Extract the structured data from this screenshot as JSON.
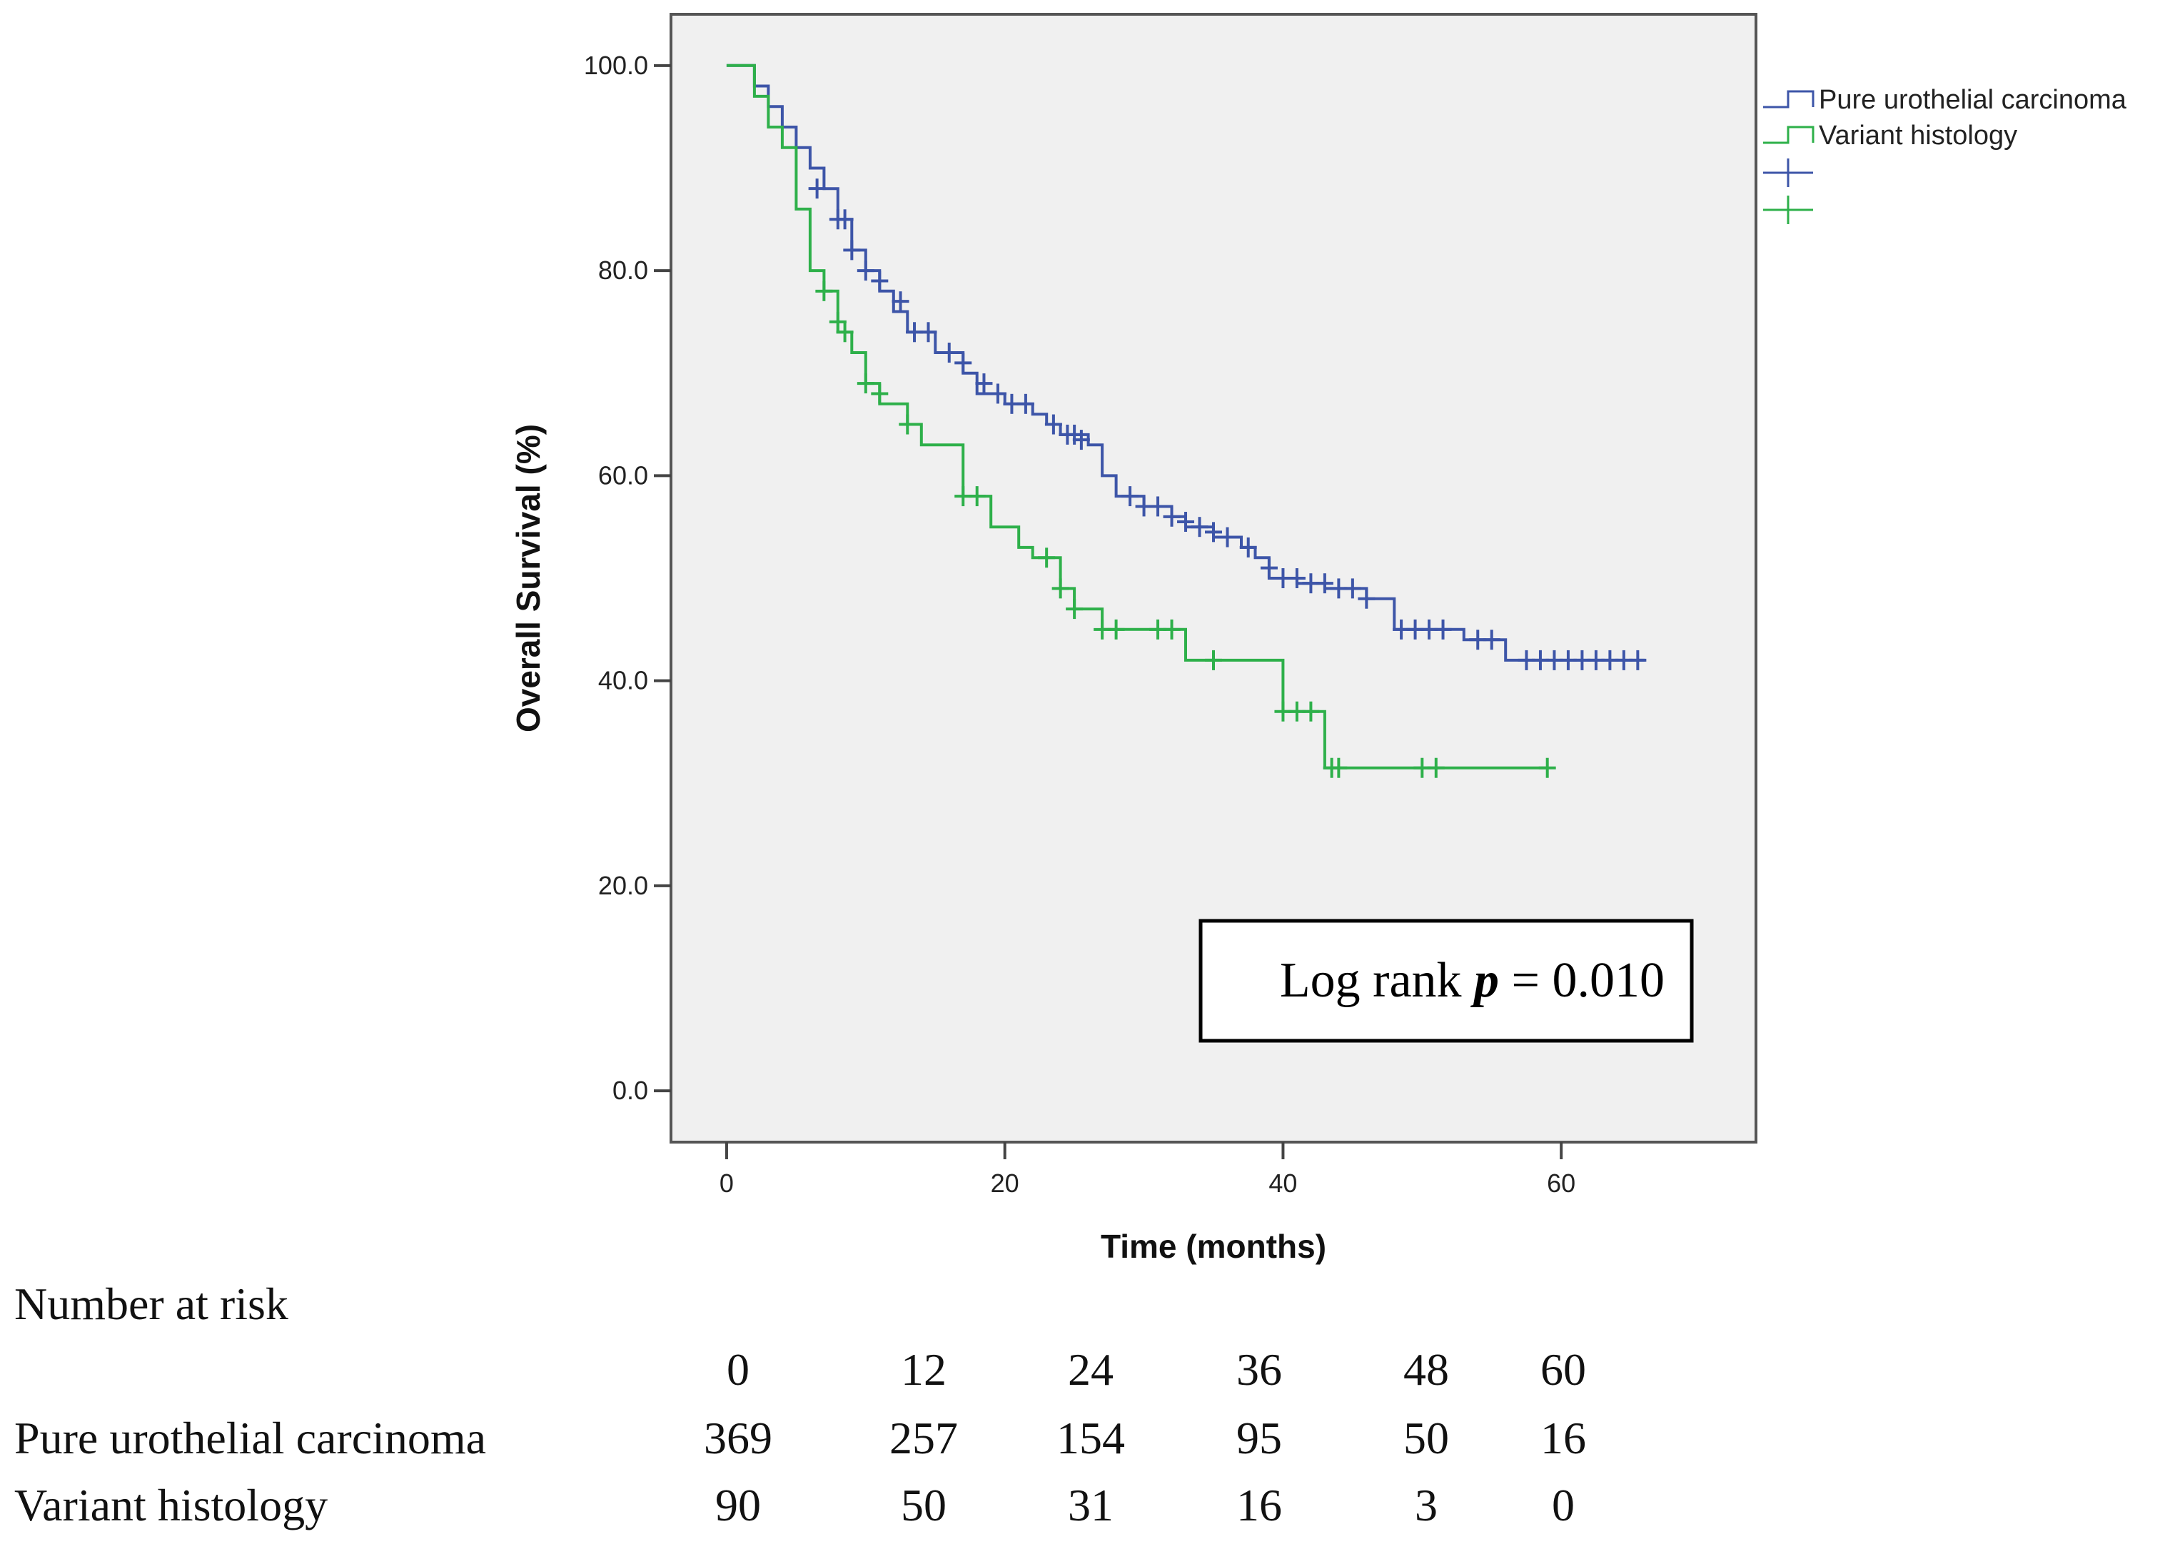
{
  "chart_data": {
    "type": "line",
    "subtype": "kaplan-meier",
    "xlabel": "Time (months)",
    "ylabel": "Overall Survival (%)",
    "xlim": [
      -4,
      74
    ],
    "ylim": [
      -5,
      105
    ],
    "xticks": [
      0,
      20,
      40,
      60
    ],
    "yticks": [
      0,
      20,
      40,
      60,
      80,
      100
    ],
    "yticklabels": [
      "0.0",
      "20.0",
      "40.0",
      "60.0",
      "80.0",
      "100.0"
    ],
    "grid": false,
    "legend": {
      "placement": "outside-top-right",
      "entries": [
        "Pure urothelial carcinoma",
        "Variant histology",
        "",
        ""
      ]
    },
    "annotation": {
      "prefix": "Log rank ",
      "italic": "p",
      "suffix": " = 0.010"
    },
    "colors": {
      "pure": "#3d55a8",
      "variant": "#2eb04a",
      "plot_bg": "#f0f0f0"
    },
    "series": [
      {
        "name": "Pure urothelial carcinoma",
        "color": "#3d55a8",
        "steps": [
          [
            0,
            100
          ],
          [
            2,
            100
          ],
          [
            2,
            98
          ],
          [
            3,
            98
          ],
          [
            3,
            96
          ],
          [
            4,
            96
          ],
          [
            4,
            94
          ],
          [
            5,
            94
          ],
          [
            5,
            92
          ],
          [
            6,
            92
          ],
          [
            6,
            90
          ],
          [
            7,
            90
          ],
          [
            7,
            88
          ],
          [
            8,
            88
          ],
          [
            8,
            85
          ],
          [
            9,
            85
          ],
          [
            9,
            82
          ],
          [
            10,
            82
          ],
          [
            10,
            80
          ],
          [
            11,
            80
          ],
          [
            11,
            78
          ],
          [
            12,
            78
          ],
          [
            12,
            76
          ],
          [
            13,
            76
          ],
          [
            13,
            74
          ],
          [
            15,
            74
          ],
          [
            15,
            72
          ],
          [
            17,
            72
          ],
          [
            17,
            70
          ],
          [
            18,
            70
          ],
          [
            18,
            68
          ],
          [
            20,
            68
          ],
          [
            20,
            67
          ],
          [
            22,
            67
          ],
          [
            22,
            66
          ],
          [
            23,
            66
          ],
          [
            23,
            65
          ],
          [
            24,
            65
          ],
          [
            24,
            64
          ],
          [
            26,
            64
          ],
          [
            26,
            63
          ],
          [
            27,
            63
          ],
          [
            27,
            60
          ],
          [
            28,
            60
          ],
          [
            28,
            58
          ],
          [
            30,
            58
          ],
          [
            30,
            57
          ],
          [
            32,
            57
          ],
          [
            32,
            56
          ],
          [
            33,
            56
          ],
          [
            33,
            55
          ],
          [
            35,
            55
          ],
          [
            35,
            54
          ],
          [
            37,
            54
          ],
          [
            37,
            53
          ],
          [
            38,
            53
          ],
          [
            38,
            52
          ],
          [
            39,
            52
          ],
          [
            39,
            50
          ],
          [
            41,
            50
          ],
          [
            41,
            49.5
          ],
          [
            43,
            49.5
          ],
          [
            43,
            49
          ],
          [
            46,
            49
          ],
          [
            46,
            48
          ],
          [
            48,
            48
          ],
          [
            48,
            45
          ],
          [
            53,
            45
          ],
          [
            53,
            44
          ],
          [
            56,
            44
          ],
          [
            56,
            42
          ],
          [
            66,
            42
          ]
        ],
        "censored": [
          [
            6.5,
            88
          ],
          [
            8,
            85
          ],
          [
            8.5,
            85
          ],
          [
            9,
            82
          ],
          [
            10,
            80
          ],
          [
            11,
            79
          ],
          [
            12.5,
            77
          ],
          [
            13.5,
            74
          ],
          [
            14.5,
            74
          ],
          [
            16,
            72
          ],
          [
            17,
            71
          ],
          [
            18.5,
            69
          ],
          [
            19.5,
            68
          ],
          [
            20.5,
            67
          ],
          [
            21.5,
            67
          ],
          [
            23.5,
            65
          ],
          [
            24.5,
            64
          ],
          [
            25,
            64
          ],
          [
            25.5,
            63.5
          ],
          [
            29,
            58
          ],
          [
            30,
            57
          ],
          [
            31,
            57
          ],
          [
            32,
            56
          ],
          [
            33,
            55.5
          ],
          [
            34,
            55
          ],
          [
            35,
            54.5
          ],
          [
            36,
            54
          ],
          [
            37.5,
            53
          ],
          [
            39,
            51
          ],
          [
            40,
            50
          ],
          [
            41,
            50
          ],
          [
            42,
            49.5
          ],
          [
            43,
            49.5
          ],
          [
            44,
            49
          ],
          [
            45,
            49
          ],
          [
            46,
            48
          ],
          [
            48.5,
            45
          ],
          [
            49.5,
            45
          ],
          [
            50.5,
            45
          ],
          [
            51.5,
            45
          ],
          [
            54,
            44
          ],
          [
            55,
            44
          ],
          [
            57.5,
            42
          ],
          [
            58.5,
            42
          ],
          [
            59.5,
            42
          ],
          [
            60.5,
            42
          ],
          [
            61.5,
            42
          ],
          [
            62.5,
            42
          ],
          [
            63.5,
            42
          ],
          [
            64.5,
            42
          ],
          [
            65.5,
            42
          ]
        ]
      },
      {
        "name": "Variant histology",
        "color": "#2eb04a",
        "steps": [
          [
            0,
            100
          ],
          [
            2,
            100
          ],
          [
            2,
            97
          ],
          [
            3,
            97
          ],
          [
            3,
            94
          ],
          [
            4,
            94
          ],
          [
            4,
            92
          ],
          [
            5,
            92
          ],
          [
            5,
            86
          ],
          [
            6,
            86
          ],
          [
            6,
            80
          ],
          [
            7,
            80
          ],
          [
            7,
            78
          ],
          [
            8,
            78
          ],
          [
            8,
            74
          ],
          [
            9,
            74
          ],
          [
            9,
            72
          ],
          [
            10,
            72
          ],
          [
            10,
            69
          ],
          [
            11,
            69
          ],
          [
            11,
            67
          ],
          [
            13,
            67
          ],
          [
            13,
            65
          ],
          [
            14,
            65
          ],
          [
            14,
            63
          ],
          [
            17,
            63
          ],
          [
            17,
            58
          ],
          [
            19,
            58
          ],
          [
            19,
            55
          ],
          [
            21,
            55
          ],
          [
            21,
            53
          ],
          [
            22,
            53
          ],
          [
            22,
            52
          ],
          [
            24,
            52
          ],
          [
            24,
            49
          ],
          [
            25,
            49
          ],
          [
            25,
            47
          ],
          [
            27,
            47
          ],
          [
            27,
            45
          ],
          [
            33,
            45
          ],
          [
            33,
            42
          ],
          [
            40,
            42
          ],
          [
            40,
            37
          ],
          [
            43,
            37
          ],
          [
            43,
            31.5
          ],
          [
            59,
            31.5
          ]
        ],
        "censored": [
          [
            7,
            78
          ],
          [
            8,
            75
          ],
          [
            8.5,
            74
          ],
          [
            10,
            69
          ],
          [
            11,
            68
          ],
          [
            13,
            65
          ],
          [
            17,
            58
          ],
          [
            18,
            58
          ],
          [
            23,
            52
          ],
          [
            24,
            49
          ],
          [
            25,
            47
          ],
          [
            27,
            45
          ],
          [
            28,
            45
          ],
          [
            31,
            45
          ],
          [
            32,
            45
          ],
          [
            35,
            42
          ],
          [
            40,
            37
          ],
          [
            41,
            37
          ],
          [
            42,
            37
          ],
          [
            43.5,
            31.5
          ],
          [
            44,
            31.5
          ],
          [
            50,
            31.5
          ],
          [
            51,
            31.5
          ],
          [
            59,
            31.5
          ]
        ]
      }
    ]
  },
  "risk_table": {
    "title": "Number at risk",
    "times": [
      "0",
      "12",
      "24",
      "36",
      "48",
      "60"
    ],
    "rows": [
      {
        "label": "Pure urothelial carcinoma",
        "values": [
          "369",
          "257",
          "154",
          "95",
          "50",
          "16"
        ]
      },
      {
        "label": "Variant histology",
        "values": [
          "90",
          "50",
          "31",
          "16",
          "3",
          "0"
        ]
      }
    ]
  }
}
